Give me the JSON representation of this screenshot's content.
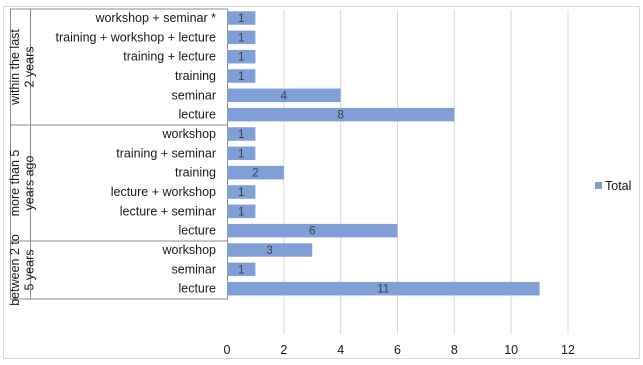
{
  "chart_data": {
    "type": "bar",
    "orientation": "horizontal",
    "title": "",
    "xlabel": "",
    "ylabel": "",
    "xlim": [
      0,
      12
    ],
    "xticks": [
      0,
      2,
      4,
      6,
      8,
      10,
      12
    ],
    "grid": "vertical",
    "legend": {
      "placement": "right",
      "entries": [
        "Total"
      ]
    },
    "bar_color": "#7f9fd6",
    "groups": [
      {
        "label": "within the last 2 years",
        "categories": [
          "workshop + seminar *",
          "training + workshop + lecture",
          "training + lecture",
          "training",
          "seminar",
          "lecture"
        ],
        "values": [
          1,
          1,
          1,
          1,
          4,
          8
        ]
      },
      {
        "label": "more than 5 years ago",
        "categories": [
          "workshop",
          "training + seminar",
          "training",
          "lecture + workshop",
          "lecture + seminar",
          "lecture"
        ],
        "values": [
          1,
          1,
          2,
          1,
          1,
          6
        ]
      },
      {
        "label": "between 2 to 5 years",
        "categories": [
          "workshop",
          "seminar",
          "lecture"
        ],
        "values": [
          3,
          1,
          11
        ]
      }
    ],
    "series": [
      {
        "name": "Total"
      }
    ]
  }
}
